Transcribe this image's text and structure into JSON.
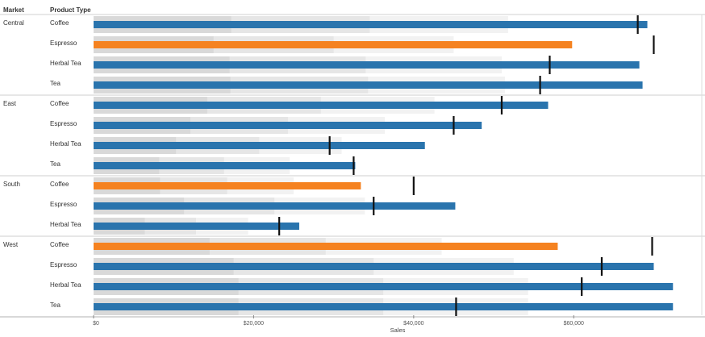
{
  "chart_data": {
    "type": "bar",
    "subtype": "bullet",
    "headers": {
      "market": "Market",
      "product_type": "Product Type"
    },
    "xlabel": "Sales",
    "xlim": [
      0,
      76000
    ],
    "x_ticks": [
      0,
      20000,
      40000,
      60000
    ],
    "x_tick_labels": [
      "$0",
      "$20,000",
      "$40,000",
      "$60,000"
    ],
    "colors": {
      "above_target": "#2a74ad",
      "below_target": "#f58220",
      "target_marker": "#111111",
      "band_low": "#d9d9d9",
      "band_mid": "#e6e6e6",
      "band_high": "#f2f2f2"
    },
    "markets": [
      {
        "name": "Central",
        "rows": [
          {
            "product": "Coffee",
            "value": 69200,
            "target": 68000,
            "bands": [
              17200,
              34500,
              51800
            ]
          },
          {
            "product": "Espresso",
            "value": 59800,
            "target": 70000,
            "bands": [
              15000,
              30000,
              45000
            ]
          },
          {
            "product": "Herbal Tea",
            "value": 68200,
            "target": 57000,
            "bands": [
              17000,
              34000,
              51000
            ]
          },
          {
            "product": "Tea",
            "value": 68600,
            "target": 55800,
            "bands": [
              17100,
              34300,
              51400
            ]
          }
        ]
      },
      {
        "name": "East",
        "rows": [
          {
            "product": "Coffee",
            "value": 56800,
            "target": 51000,
            "bands": [
              14200,
              28400,
              42600
            ]
          },
          {
            "product": "Espresso",
            "value": 48500,
            "target": 45000,
            "bands": [
              12100,
              24300,
              36400
            ]
          },
          {
            "product": "Herbal Tea",
            "value": 41400,
            "target": 29500,
            "bands": [
              10300,
              20700,
              31000
            ]
          },
          {
            "product": "Tea",
            "value": 32700,
            "target": 32500,
            "bands": [
              8200,
              16300,
              24500
            ]
          }
        ]
      },
      {
        "name": "South",
        "rows": [
          {
            "product": "Coffee",
            "value": 33400,
            "target": 40000,
            "bands": [
              8300,
              16700,
              25000
            ]
          },
          {
            "product": "Espresso",
            "value": 45200,
            "target": 35000,
            "bands": [
              11300,
              22600,
              33900
            ]
          },
          {
            "product": "Herbal Tea",
            "value": 25700,
            "target": 23200,
            "bands": [
              6400,
              12800,
              19300
            ]
          }
        ]
      },
      {
        "name": "West",
        "rows": [
          {
            "product": "Coffee",
            "value": 58000,
            "target": 69800,
            "bands": [
              14500,
              29000,
              43500
            ]
          },
          {
            "product": "Espresso",
            "value": 70000,
            "target": 63500,
            "bands": [
              17500,
              35000,
              52500
            ]
          },
          {
            "product": "Herbal Tea",
            "value": 72400,
            "target": 61000,
            "bands": [
              18100,
              36200,
              54300
            ]
          },
          {
            "product": "Tea",
            "value": 72400,
            "target": 45300,
            "bands": [
              18100,
              36200,
              54300
            ]
          }
        ]
      }
    ]
  }
}
